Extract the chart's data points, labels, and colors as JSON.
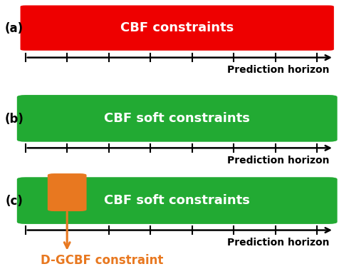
{
  "panels": [
    "(a)",
    "(b)",
    "(c)"
  ],
  "panel_labels": [
    "CBF constraints",
    "CBF soft constraints",
    "CBF soft constraints"
  ],
  "bar_colors": [
    "#ee0000",
    "#22aa33",
    "#22aa33"
  ],
  "axis_label": "Prediction horizon",
  "tick_count": 8,
  "orange_color": "#e87820",
  "dgcbf_label": "D-GCBF constraint",
  "white_text": "#ffffff",
  "black_text": "#000000",
  "bg_color": "#ffffff",
  "panel_label_fontsize": 12,
  "bar_text_fontsize": 13,
  "axis_text_fontsize": 10
}
